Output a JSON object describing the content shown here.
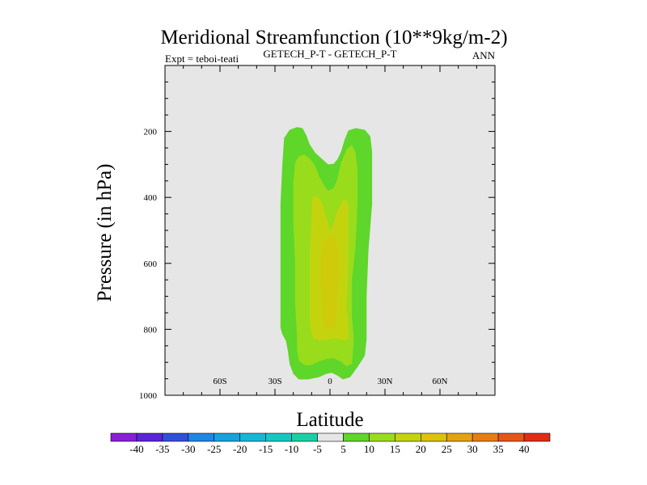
{
  "chart_data": {
    "type": "contour",
    "title": "Meridional Streamfunction (10**9kg/m-2)",
    "subtitle_left": "Expt = teboi-teati",
    "subtitle_center": "GETECH_P-T - GETECH_P-T",
    "subtitle_right": "ANN",
    "xlabel": "Latitude",
    "ylabel": "Pressure (in hPa)",
    "xlim": [
      -90,
      90
    ],
    "ylim": [
      1000,
      0
    ],
    "x_ticks": [
      {
        "value": -60,
        "label": "60S"
      },
      {
        "value": -30,
        "label": "30S"
      },
      {
        "value": 0,
        "label": "0"
      },
      {
        "value": 30,
        "label": "30N"
      },
      {
        "value": 60,
        "label": "60N"
      }
    ],
    "y_ticks": [
      {
        "value": 200,
        "label": "200"
      },
      {
        "value": 400,
        "label": "400"
      },
      {
        "value": 600,
        "label": "600"
      },
      {
        "value": 800,
        "label": "800"
      },
      {
        "value": 1000,
        "label": "1000"
      }
    ],
    "background_color": "#e6e6e6",
    "contour_regions": [
      {
        "level": "5 to 10",
        "color": "#5ed62a",
        "outline": [
          [
            -27,
            795
          ],
          [
            -27,
            550
          ],
          [
            -27,
            420
          ],
          [
            -26,
            300
          ],
          [
            -25,
            220
          ],
          [
            -22,
            195
          ],
          [
            -18,
            187
          ],
          [
            -15,
            190
          ],
          [
            -13,
            210
          ],
          [
            -11,
            240
          ],
          [
            -8,
            265
          ],
          [
            -4,
            285
          ],
          [
            -1,
            300
          ],
          [
            2,
            298
          ],
          [
            4,
            285
          ],
          [
            6,
            262
          ],
          [
            8,
            225
          ],
          [
            10,
            197
          ],
          [
            14,
            190
          ],
          [
            19,
            195
          ],
          [
            22,
            215
          ],
          [
            23,
            260
          ],
          [
            23,
            320
          ],
          [
            23,
            420
          ],
          [
            21,
            560
          ],
          [
            20,
            700
          ],
          [
            20,
            830
          ],
          [
            19,
            880
          ],
          [
            15,
            915
          ],
          [
            11,
            945
          ],
          [
            7,
            952
          ],
          [
            4,
            940
          ],
          [
            1,
            932
          ],
          [
            -2,
            935
          ],
          [
            -6,
            945
          ],
          [
            -12,
            952
          ],
          [
            -17,
            952
          ],
          [
            -20,
            935
          ],
          [
            -22,
            905
          ],
          [
            -23,
            865
          ],
          [
            -24,
            835
          ],
          [
            -26,
            815
          ]
        ]
      },
      {
        "level": "10 to 15",
        "color": "#99dc1c",
        "outline": [
          [
            -20,
            355
          ],
          [
            -19,
            295
          ],
          [
            -17,
            275
          ],
          [
            -14,
            270
          ],
          [
            -11,
            282
          ],
          [
            -8,
            305
          ],
          [
            -6,
            335
          ],
          [
            -3,
            365
          ],
          [
            -1,
            380
          ],
          [
            2,
            372
          ],
          [
            4,
            345
          ],
          [
            6,
            295
          ],
          [
            9,
            255
          ],
          [
            12,
            240
          ],
          [
            14,
            265
          ],
          [
            15,
            320
          ],
          [
            15,
            420
          ],
          [
            14,
            550
          ],
          [
            12,
            650
          ],
          [
            12,
            760
          ],
          [
            13,
            830
          ],
          [
            12,
            905
          ],
          [
            9,
            912
          ],
          [
            6,
            898
          ],
          [
            2,
            888
          ],
          [
            -2,
            890
          ],
          [
            -7,
            900
          ],
          [
            -11,
            910
          ],
          [
            -14,
            908
          ],
          [
            -17,
            895
          ],
          [
            -18,
            860
          ],
          [
            -18,
            820
          ],
          [
            -19,
            720
          ],
          [
            -19,
            600
          ],
          [
            -20,
            480
          ],
          [
            -20,
            400
          ]
        ]
      },
      {
        "level": "15 to 20",
        "color": "#c3d40f",
        "outline": [
          [
            -11,
            740
          ],
          [
            -11,
            650
          ],
          [
            -11,
            560
          ],
          [
            -10,
            470
          ],
          [
            -10,
            420
          ],
          [
            -9,
            395
          ],
          [
            -6,
            400
          ],
          [
            -4,
            420
          ],
          [
            -2,
            460
          ],
          [
            0,
            500
          ],
          [
            2,
            480
          ],
          [
            4,
            440
          ],
          [
            7,
            410
          ],
          [
            9,
            405
          ],
          [
            10,
            430
          ],
          [
            10,
            520
          ],
          [
            10,
            630
          ],
          [
            9,
            720
          ],
          [
            10,
            790
          ],
          [
            10,
            830
          ],
          [
            8,
            835
          ],
          [
            6,
            830
          ],
          [
            2,
            828
          ],
          [
            -2,
            832
          ],
          [
            -6,
            833
          ],
          [
            -9,
            828
          ],
          [
            -10,
            810
          ],
          [
            -11,
            780
          ]
        ]
      },
      {
        "level": "20 to 25",
        "color": "#cfcb0a",
        "outline": [
          [
            -5,
            580
          ],
          [
            -4,
            540
          ],
          [
            -2,
            520
          ],
          [
            0,
            522
          ],
          [
            2,
            520
          ],
          [
            4,
            540
          ],
          [
            5,
            580
          ],
          [
            5,
            640
          ],
          [
            4,
            700
          ],
          [
            4,
            760
          ],
          [
            3,
            790
          ],
          [
            1,
            800
          ],
          [
            -1,
            800
          ],
          [
            -3,
            795
          ],
          [
            -4,
            780
          ],
          [
            -4,
            720
          ],
          [
            -5,
            660
          ]
        ]
      }
    ],
    "colorbar": {
      "labels": [
        "-40",
        "-35",
        "-30",
        "-25",
        "-20",
        "-15",
        "-10",
        "-5",
        "5",
        "10",
        "15",
        "20",
        "25",
        "30",
        "35",
        "40"
      ],
      "colors": [
        "#8a1ed9",
        "#5a24d9",
        "#3150da",
        "#1d86e6",
        "#16a2e0",
        "#15b7d8",
        "#13c8c4",
        "#17d1a4",
        "#e6e6e6",
        "#5ed62a",
        "#99dc1c",
        "#c3d40f",
        "#ddc20c",
        "#e3a20f",
        "#e77d12",
        "#e65617",
        "#e02d14"
      ]
    }
  }
}
